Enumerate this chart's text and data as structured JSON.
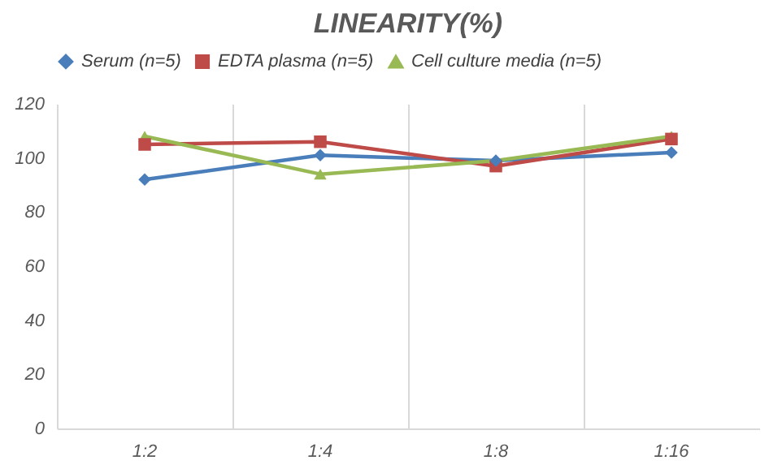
{
  "chart_data": {
    "type": "line",
    "title": "LINEARITY(%)",
    "categories": [
      "1:2",
      "1:4",
      "1:8",
      "1:16"
    ],
    "series": [
      {
        "name": "Serum (n=5)",
        "color": "#4a7ebb",
        "marker": "diamond",
        "values": [
          92,
          101,
          99,
          102
        ]
      },
      {
        "name": "EDTA plasma (n=5)",
        "color": "#be4b48",
        "marker": "square",
        "values": [
          105,
          106,
          97,
          107
        ]
      },
      {
        "name": "Cell culture media (n=5)",
        "color": "#98b954",
        "marker": "triangle",
        "values": [
          108,
          94,
          99,
          108
        ]
      }
    ],
    "ylim": [
      0,
      120
    ],
    "yticks": [
      0,
      20,
      40,
      60,
      80,
      100,
      120
    ],
    "grid": "x",
    "legend": "top",
    "line_style": "solid"
  }
}
